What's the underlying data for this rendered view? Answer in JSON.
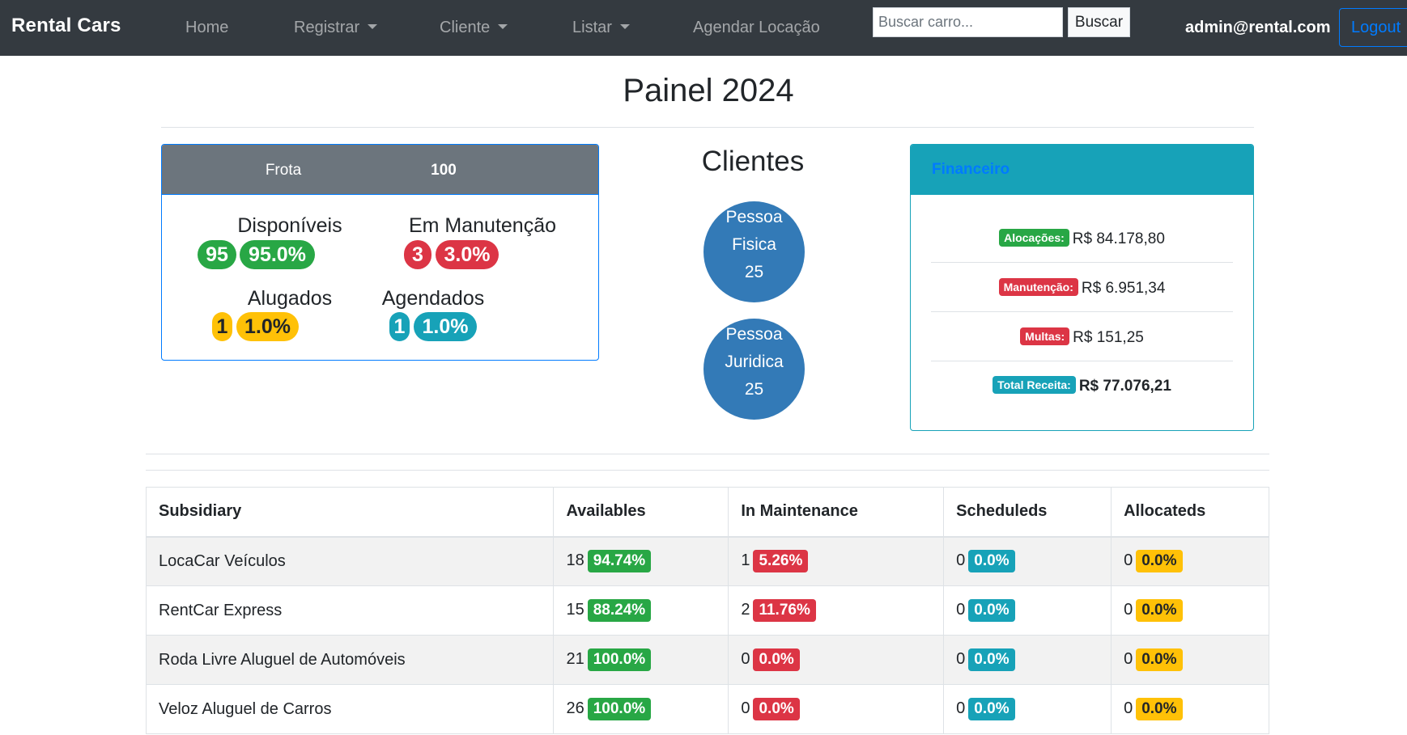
{
  "navbar": {
    "brand": "Rental Cars",
    "items": [
      {
        "label": "Home",
        "dropdown": false
      },
      {
        "label": "Registrar",
        "dropdown": true
      },
      {
        "label": "Cliente",
        "dropdown": true
      },
      {
        "label": "Listar",
        "dropdown": true
      },
      {
        "label": "Agendar Locação",
        "dropdown": false
      }
    ],
    "search_placeholder": "Buscar carro...",
    "search_button": "Buscar",
    "user_email": "admin@rental.com",
    "logout": "Logout"
  },
  "page_title": "Painel 2024",
  "frota": {
    "label": "Frota",
    "total": "100",
    "disponiveis": {
      "title": "Disponíveis",
      "count": "95",
      "percent": "95.0%"
    },
    "manutencao": {
      "title": "Em Manutenção",
      "count": "3",
      "percent": "3.0%"
    },
    "alugados": {
      "title": "Alugados",
      "count": "1",
      "percent": "1.0%"
    },
    "agendados": {
      "title": "Agendados",
      "count": "1",
      "percent": "1.0%"
    }
  },
  "clientes": {
    "title": "Clientes",
    "fisica": {
      "line1": "Pessoa",
      "line2": "Fisica",
      "count": "25"
    },
    "juridica": {
      "line1": "Pessoa",
      "line2": "Juridica",
      "count": "25"
    }
  },
  "financeiro": {
    "title": "Financeiro",
    "rows": [
      {
        "label": "Alocações:",
        "value": "R$ 84.178,80"
      },
      {
        "label": "Manutenção:",
        "value": "R$ 6.951,34"
      },
      {
        "label": "Multas:",
        "value": "R$ 151,25"
      },
      {
        "label": "Total Receita:",
        "value": "R$ 77.076,21"
      }
    ]
  },
  "table": {
    "headers": [
      "Subsidiary",
      "Availables",
      "In Maintenance",
      "Scheduleds",
      "Allocateds"
    ],
    "rows": [
      {
        "name": "LocaCar Veículos",
        "avail": "18",
        "avail_pct": "94.74%",
        "maint": "1",
        "maint_pct": "5.26%",
        "sched": "0",
        "sched_pct": "0.0%",
        "alloc": "0",
        "alloc_pct": "0.0%"
      },
      {
        "name": "RentCar Express",
        "avail": "15",
        "avail_pct": "88.24%",
        "maint": "2",
        "maint_pct": "11.76%",
        "sched": "0",
        "sched_pct": "0.0%",
        "alloc": "0",
        "alloc_pct": "0.0%"
      },
      {
        "name": "Roda Livre Aluguel de Automóveis",
        "avail": "21",
        "avail_pct": "100.0%",
        "maint": "0",
        "maint_pct": "0.0%",
        "sched": "0",
        "sched_pct": "0.0%",
        "alloc": "0",
        "alloc_pct": "0.0%"
      },
      {
        "name": "Veloz Aluguel de Carros",
        "avail": "26",
        "avail_pct": "100.0%",
        "maint": "0",
        "maint_pct": "0.0%",
        "sched": "0",
        "sched_pct": "0.0%",
        "alloc": "0",
        "alloc_pct": "0.0%"
      }
    ]
  },
  "colors": {
    "navbar_bg": "#343a40",
    "success": "#28a745",
    "danger": "#dc3545",
    "warning": "#ffc107",
    "info": "#17a2b8",
    "primary": "#007bff",
    "circle": "#337ab7"
  }
}
